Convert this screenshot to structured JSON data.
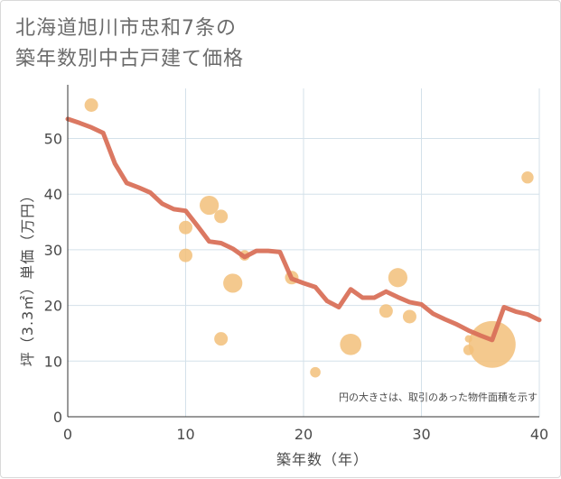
{
  "title": {
    "line1": "北海道旭川市忠和7条の",
    "line2": "築年数別中古戸建て価格"
  },
  "chart_data": {
    "type": "scatter+line",
    "xlabel": "築年数（年）",
    "ylabel": "坪（3.3㎡）単価（万円）",
    "xlim": [
      0,
      40
    ],
    "ylim": [
      0,
      59
    ],
    "xticks": [
      0,
      10,
      20,
      30,
      40
    ],
    "yticks": [
      0,
      10,
      20,
      30,
      40,
      50
    ],
    "grid": true,
    "note": "円の大きさは、取引のあった物件面積を示す",
    "colors": {
      "bubble": "#f2c07a",
      "line": "#d9715a",
      "grid": "#d4e1ea",
      "axis": "#333333"
    },
    "scatter": [
      {
        "x": 2,
        "y": 56,
        "size": 1
      },
      {
        "x": 10,
        "y": 34,
        "size": 1
      },
      {
        "x": 10,
        "y": 29,
        "size": 1
      },
      {
        "x": 12,
        "y": 38,
        "size": 2
      },
      {
        "x": 13,
        "y": 36,
        "size": 1
      },
      {
        "x": 13,
        "y": 14,
        "size": 1
      },
      {
        "x": 14,
        "y": 24,
        "size": 2
      },
      {
        "x": 15,
        "y": 29,
        "size": 0.6
      },
      {
        "x": 19,
        "y": 25,
        "size": 1
      },
      {
        "x": 21,
        "y": 8,
        "size": 0.6
      },
      {
        "x": 24,
        "y": 13,
        "size": 2.5
      },
      {
        "x": 27,
        "y": 19,
        "size": 1
      },
      {
        "x": 28,
        "y": 25,
        "size": 2
      },
      {
        "x": 29,
        "y": 18,
        "size": 1
      },
      {
        "x": 34,
        "y": 14,
        "size": 0.3
      },
      {
        "x": 34,
        "y": 12,
        "size": 0.6
      },
      {
        "x": 36,
        "y": 13,
        "size": 12
      },
      {
        "x": 39,
        "y": 43,
        "size": 0.8
      }
    ],
    "trend": {
      "x": [
        0,
        1,
        2,
        3,
        4,
        5,
        6,
        7,
        8,
        9,
        10,
        11,
        12,
        13,
        14,
        15,
        16,
        17,
        18,
        19,
        20,
        21,
        22,
        23,
        24,
        25,
        26,
        27,
        28,
        29,
        30,
        31,
        32,
        33,
        34,
        35,
        36,
        37,
        38,
        39,
        40
      ],
      "y": [
        53.5,
        52.8,
        52,
        51,
        45.5,
        42,
        41.2,
        40.3,
        38.3,
        37.3,
        37,
        34.3,
        31.5,
        31.2,
        30.2,
        28.7,
        29.8,
        29.8,
        29.6,
        24.8,
        24,
        23.3,
        20.8,
        19.7,
        22.9,
        21.4,
        21.4,
        22.5,
        21.5,
        20.6,
        20.2,
        18.5,
        17.5,
        16.6,
        15.5,
        14.6,
        13.8,
        19.7,
        18.9,
        18.4,
        17.4
      ]
    }
  }
}
